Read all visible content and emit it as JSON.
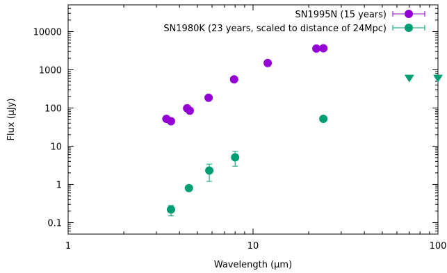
{
  "chart_data": {
    "type": "scatter",
    "xlabel": "Wavelength (µm)",
    "ylabel": "Flux (µJy)",
    "x_scale": "log",
    "y_scale": "log",
    "xlim": [
      1,
      100
    ],
    "ylim": [
      0.05,
      50000
    ],
    "x_ticks": [
      {
        "value": 1,
        "label": "1"
      },
      {
        "value": 10,
        "label": "10"
      },
      {
        "value": 100,
        "label": "100"
      }
    ],
    "y_ticks": [
      {
        "value": 0.1,
        "label": "0.1"
      },
      {
        "value": 1,
        "label": "1"
      },
      {
        "value": 10,
        "label": "10"
      },
      {
        "value": 100,
        "label": "100"
      },
      {
        "value": 1000,
        "label": "1000"
      },
      {
        "value": 10000,
        "label": "10000"
      }
    ],
    "grid": false,
    "legend_position": "top-right",
    "series": [
      {
        "name": "SN1995N (15 years)",
        "color": "#9400d3",
        "marker": "circle",
        "points": [
          {
            "x": 3.4,
            "y": 52
          },
          {
            "x": 3.6,
            "y": 45
          },
          {
            "x": 4.4,
            "y": 98
          },
          {
            "x": 4.55,
            "y": 85
          },
          {
            "x": 5.75,
            "y": 185
          },
          {
            "x": 7.9,
            "y": 560
          },
          {
            "x": 12,
            "y": 1500
          },
          {
            "x": 22,
            "y": 3600
          },
          {
            "x": 24,
            "y": 3650
          }
        ]
      },
      {
        "name": "SN1980K (23 years, scaled to distance of 24Mpc)",
        "color": "#009e73",
        "marker": "circle",
        "points": [
          {
            "x": 3.6,
            "y": 0.22,
            "ylo": 0.15,
            "yhi": 0.28
          },
          {
            "x": 4.5,
            "y": 0.8
          },
          {
            "x": 5.8,
            "y": 2.3,
            "ylo": 1.2,
            "yhi": 3.4
          },
          {
            "x": 8.0,
            "y": 5.1,
            "ylo": 3.0,
            "yhi": 7.3
          },
          {
            "x": 24,
            "y": 52
          }
        ],
        "upper_limits": [
          {
            "x": 70,
            "y": 600
          },
          {
            "x": 100,
            "y": 600
          }
        ]
      }
    ]
  }
}
